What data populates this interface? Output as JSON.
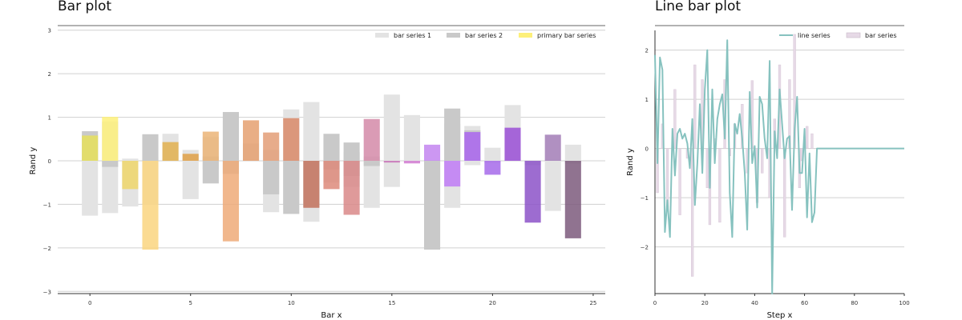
{
  "chart_data": [
    {
      "type": "bar",
      "title": "Bar plot",
      "xlabel": "Bar x",
      "ylabel": "Rand y",
      "xlim": [
        -1.6,
        25.6
      ],
      "ylim": [
        -3.05,
        3.05
      ],
      "xticks": [
        0,
        5,
        10,
        15,
        20,
        25
      ],
      "yticks": [
        -3,
        -2,
        -1,
        0,
        1,
        2,
        3
      ],
      "grid": "horizontal",
      "legend_position": "top-right",
      "x": [
        0,
        1,
        2,
        3,
        4,
        5,
        6,
        7,
        8,
        9,
        10,
        11,
        12,
        13,
        14,
        15,
        16,
        17,
        18,
        19,
        20,
        21,
        22,
        23,
        24
      ],
      "series": [
        {
          "name": "bar series 1",
          "color": "#e3e3e3",
          "pos_values": [
            0.6,
            0.9,
            0.05,
            0.1,
            0.62,
            0.25,
            0.55,
            0.9,
            0.4,
            0.25,
            1.18,
            1.35,
            0.5,
            0.2,
            0.1,
            1.52,
            1.05,
            0.0,
            0.85,
            0.8,
            0.3,
            1.28,
            0.0,
            0.0,
            0.37
          ],
          "neg_values": [
            -1.26,
            -1.2,
            -1.05,
            -1.0,
            0.0,
            -0.88,
            -0.2,
            -0.2,
            0.0,
            -1.18,
            -1.0,
            -1.4,
            -0.5,
            -0.6,
            -1.08,
            -0.6,
            -0.05,
            -0.8,
            -1.08,
            -0.1,
            -0.05,
            0.0,
            -0.1,
            -1.15,
            -0.06
          ]
        },
        {
          "name": "bar series 2",
          "color": "#c9c9c9",
          "pos_values": [
            0.68,
            0.0,
            0.0,
            0.61,
            0.0,
            0.0,
            0.1,
            1.12,
            0.0,
            0.0,
            0.0,
            0.0,
            0.62,
            0.42,
            0.0,
            0.0,
            0.0,
            0.0,
            1.2,
            0.7,
            0.0,
            0.0,
            0.0,
            0.0,
            0.0
          ],
          "neg_values": [
            0.0,
            -0.14,
            0.0,
            0.0,
            0.0,
            0.0,
            -0.52,
            -0.3,
            0.0,
            -0.77,
            -1.22,
            -1.07,
            -0.2,
            -0.35,
            -0.12,
            0.0,
            0.0,
            -2.04,
            0.0,
            0.0,
            0.0,
            0.0,
            0.0,
            0.0,
            0.0
          ]
        },
        {
          "name": "primary bar series",
          "colormap": [
            "#e6e05c",
            "#fdf07a",
            "#eed66a",
            "#fad57f",
            "#e2b04f",
            "#dfa046",
            "#ebb477",
            "#eeaa78",
            "#e5a070",
            "#e39d77",
            "#d98a69",
            "#c77660",
            "#dd8a7a",
            "#d98888",
            "#d38aa8",
            "#c873b8",
            "#d37cd3",
            "#c385f0",
            "#c07bf6",
            "#aa66ee",
            "#a66aea",
            "#9a4fd6",
            "#8c52c8",
            "#a27cb6",
            "#7d5b7d"
          ],
          "values": [
            0.58,
            1.01,
            -0.65,
            -2.04,
            0.43,
            0.16,
            0.67,
            -1.85,
            0.93,
            0.65,
            0.98,
            -1.08,
            -0.65,
            -1.24,
            0.96,
            -0.04,
            -0.06,
            0.37,
            -0.59,
            0.66,
            -0.32,
            0.76,
            -1.42,
            0.6,
            -1.78
          ]
        }
      ]
    },
    {
      "type": "line",
      "title": "Line bar plot",
      "xlabel": "Step x",
      "ylabel": "Rand y",
      "xlim": [
        0,
        100
      ],
      "ylim": [
        -2.95,
        2.4
      ],
      "xticks": [
        0,
        20,
        40,
        60,
        80,
        100
      ],
      "yticks": [
        -2,
        -1,
        0,
        1,
        2
      ],
      "grid": "horizontal",
      "legend_position": "top-right",
      "series": [
        {
          "name": "line series",
          "color": "#86c2bf",
          "x": [
            0,
            1,
            2,
            3,
            4,
            5,
            6,
            7,
            8,
            9,
            10,
            11,
            12,
            13,
            14,
            15,
            16,
            17,
            18,
            19,
            20,
            21,
            22,
            23,
            24,
            25,
            26,
            27,
            28,
            29,
            30,
            31,
            32,
            33,
            34,
            35,
            36,
            37,
            38,
            39,
            40,
            41,
            42,
            43,
            44,
            45,
            46,
            47,
            48,
            49,
            50,
            51,
            52,
            53,
            54,
            55,
            56,
            57,
            58,
            59,
            60,
            61,
            62,
            63,
            64,
            65,
            66,
            67,
            100
          ],
          "y": [
            1.9,
            -0.3,
            1.85,
            1.6,
            -1.7,
            -1.05,
            -1.8,
            0.4,
            -0.55,
            0.3,
            0.4,
            0.2,
            0.3,
            0.1,
            -0.4,
            0.6,
            -1.15,
            -0.3,
            0.9,
            -0.5,
            1.2,
            2.0,
            -0.8,
            1.2,
            -0.3,
            0.6,
            0.9,
            1.1,
            0.2,
            2.2,
            -0.9,
            -1.8,
            0.5,
            0.3,
            0.7,
            0.2,
            -0.5,
            -1.65,
            1.15,
            -0.3,
            0.05,
            -1.2,
            1.05,
            0.9,
            0.2,
            -0.2,
            1.78,
            -2.95,
            0.35,
            -0.2,
            1.2,
            0.5,
            -0.2,
            0.2,
            0.25,
            -1.25,
            0.4,
            1.05,
            -0.5,
            -0.5,
            0.4,
            -1.4,
            -0.1,
            -1.5,
            -1.3,
            0.0,
            0.0,
            0.0,
            0.0
          ]
        },
        {
          "name": "bar series",
          "color": "#e6d9e6",
          "x": [
            1,
            3,
            5,
            8,
            10,
            13,
            15,
            16,
            19,
            21,
            22,
            24,
            26,
            28,
            30,
            32,
            35,
            37,
            39,
            41,
            43,
            46,
            48,
            50,
            52,
            54,
            56,
            58,
            59,
            61,
            63
          ],
          "values": [
            -0.9,
            0.5,
            -1.2,
            1.2,
            -1.35,
            -0.2,
            -2.6,
            1.7,
            1.4,
            -0.8,
            -1.55,
            0.2,
            -1.5,
            1.4,
            -0.15,
            0.5,
            0.9,
            -0.5,
            1.38,
            -1.1,
            -0.5,
            -1.0,
            0.6,
            1.7,
            -1.8,
            1.4,
            2.32,
            -0.8,
            -0.25,
            0.45,
            0.3
          ]
        }
      ]
    }
  ]
}
